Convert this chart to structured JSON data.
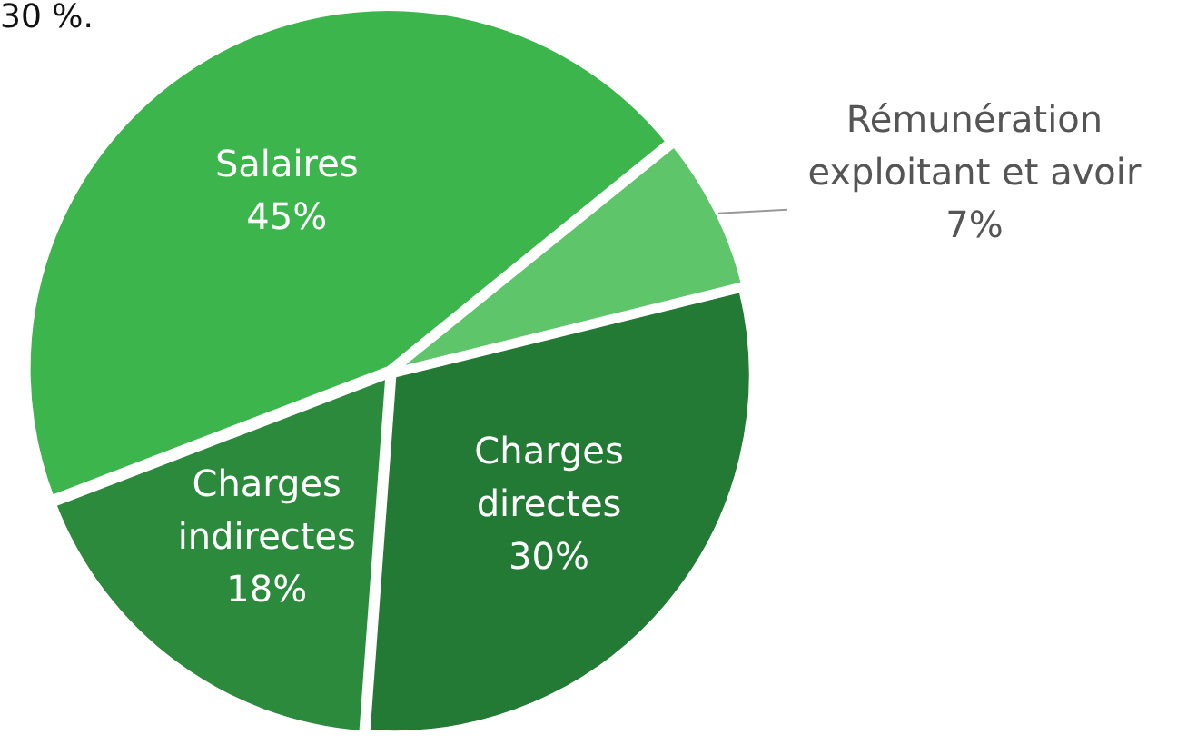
{
  "chart_data": {
    "type": "pie",
    "categories": [
      "Salaires",
      "Rémunération exploitant et avoir",
      "Charges directes",
      "Charges indirectes"
    ],
    "values": [
      45,
      7,
      30,
      18
    ],
    "colors": [
      "#3cb64c",
      "#5ec56a",
      "#237a34",
      "#2c8a3c"
    ],
    "value_labels": [
      "45%",
      "7%",
      "30%",
      "18%"
    ],
    "annotations": [
      "30 %."
    ]
  }
}
